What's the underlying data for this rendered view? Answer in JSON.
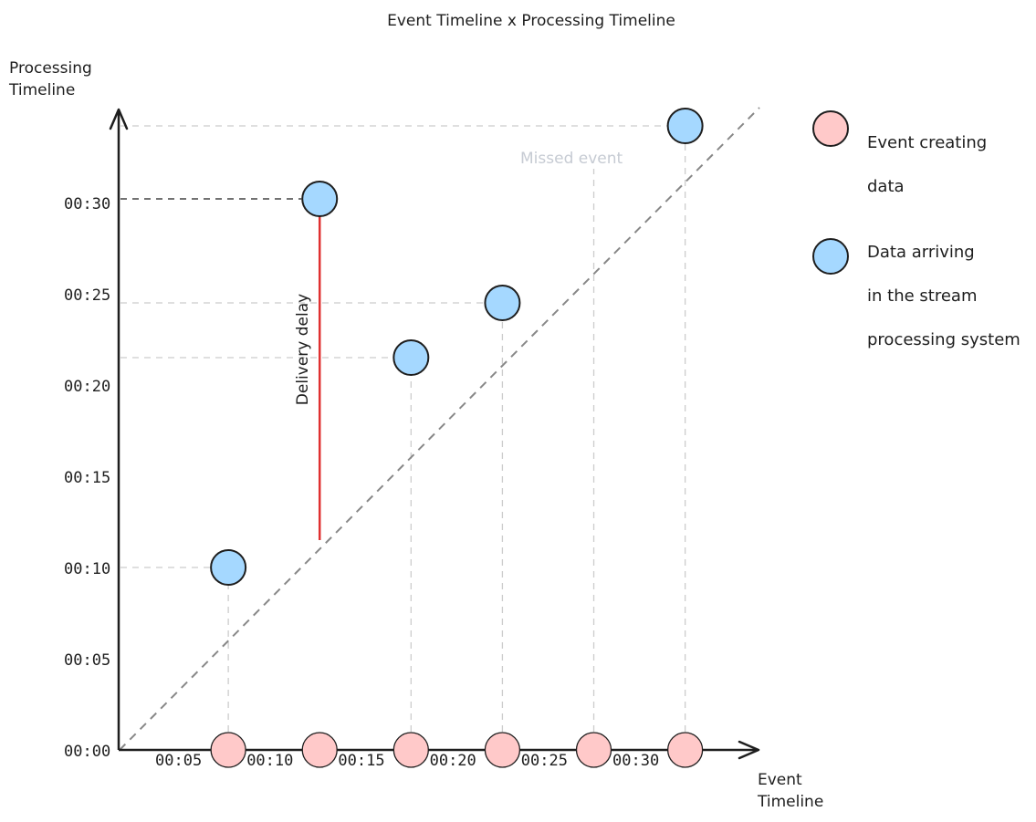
{
  "title": "Event Timeline x Processing Timeline",
  "y_axis_label": [
    "Processing",
    "Timeline"
  ],
  "x_axis_label": [
    "Event",
    "Timeline"
  ],
  "annotation_missed": "Missed event",
  "annotation_delay": "Delivery delay",
  "legend": [
    {
      "lines": [
        "Event creating",
        "data"
      ],
      "color": "#ffc9c9"
    },
    {
      "lines": [
        "Data arriving",
        "in the stream",
        "processing system"
      ],
      "color": "#a5d8ff"
    }
  ],
  "colors": {
    "event_marker": "#ffc9c9",
    "arrival_marker": "#a5d8ff",
    "delay_line": "#e03131",
    "guides": "#cccccc",
    "diagonal": "#888888"
  },
  "chart_data": {
    "type": "scatter",
    "x_ticks": [
      "00:05",
      "00:10",
      "00:15",
      "00:20",
      "00:25",
      "00:30"
    ],
    "y_ticks": [
      "00:00",
      "00:05",
      "00:10",
      "00:15",
      "00:20",
      "00:25",
      "00:30"
    ],
    "event_times_min": [
      6,
      11,
      16,
      21,
      26,
      31
    ],
    "arrivals": [
      {
        "event_time_min": 6,
        "processing_time_min": 10
      },
      {
        "event_time_min": 11,
        "processing_time_min": 30.2
      },
      {
        "event_time_min": 16,
        "processing_time_min": 21.5
      },
      {
        "event_time_min": 21,
        "processing_time_min": 24.5
      },
      {
        "event_time_min": 31,
        "processing_time_min": 34.2
      }
    ],
    "missed_event_time_min": 26,
    "delay_segment": {
      "event_time_min": 11,
      "from_min": 11.5,
      "to_min": 30.2
    }
  }
}
